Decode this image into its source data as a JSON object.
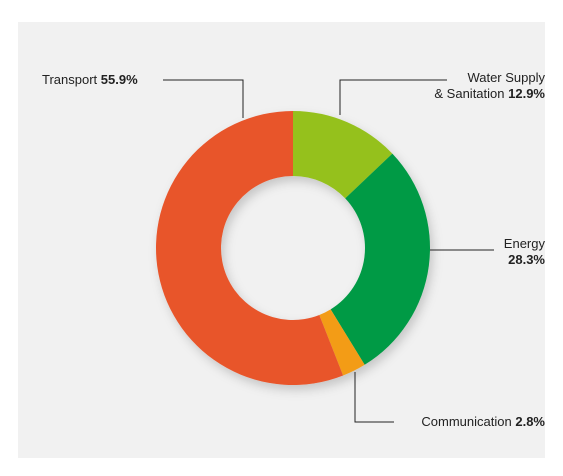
{
  "chart_data": {
    "type": "donut",
    "categories": [
      "Water Supply\n& Sanitation",
      "Energy",
      "Communication",
      "Transport"
    ],
    "values": [
      12.9,
      28.3,
      2.8,
      55.9
    ],
    "value_labels": [
      "12.9%",
      "28.3%",
      "2.8%",
      "55.9%"
    ],
    "colors": [
      "#95c11f",
      "#009a44",
      "#f39c12",
      "#e8542b"
    ]
  }
}
